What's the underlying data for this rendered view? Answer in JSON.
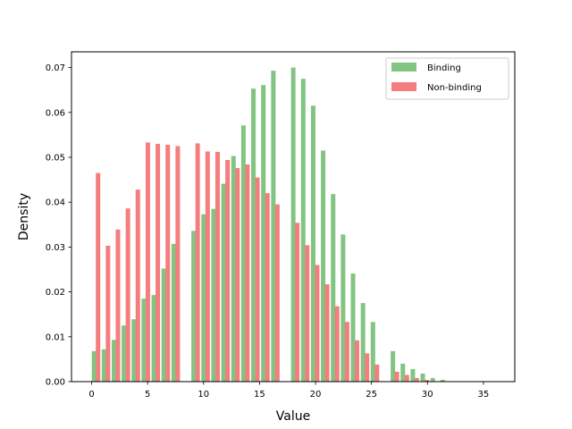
{
  "chart_data": {
    "type": "bar",
    "title": "",
    "xlabel": "Value",
    "ylabel": "Density",
    "xlim": [
      -1.8,
      37.8
    ],
    "ylim": [
      0,
      0.0735
    ],
    "xticks": [
      0,
      5,
      10,
      15,
      20,
      25,
      30,
      35
    ],
    "yticks": [
      0.0,
      0.01,
      0.02,
      0.03,
      0.04,
      0.05,
      0.06,
      0.07
    ],
    "ytick_labels": [
      "0.00",
      "0.01",
      "0.02",
      "0.03",
      "0.04",
      "0.05",
      "0.06",
      "0.07"
    ],
    "grid": false,
    "legend_position": "top-right",
    "bar_width": 0.4,
    "series": [
      {
        "name": "Binding",
        "color": "#82c482",
        "x": [
          0.21,
          1.1,
          1.99,
          2.88,
          3.77,
          4.66,
          5.55,
          6.44,
          7.33,
          9.11,
          10.0,
          10.89,
          11.78,
          12.67,
          13.56,
          14.45,
          15.34,
          16.23,
          18.01,
          18.9,
          19.79,
          20.68,
          21.57,
          22.46,
          23.35,
          24.24,
          25.13,
          26.91,
          27.8,
          28.69,
          29.58,
          30.47,
          31.36
        ],
        "values": [
          0.0068,
          0.0072,
          0.0093,
          0.0125,
          0.0139,
          0.0185,
          0.0193,
          0.0252,
          0.0307,
          0.0336,
          0.0373,
          0.0385,
          0.0441,
          0.0503,
          0.0571,
          0.0653,
          0.0661,
          0.0693,
          0.07,
          0.0675,
          0.0615,
          0.0515,
          0.0418,
          0.0328,
          0.0241,
          0.0175,
          0.0133,
          0.0068,
          0.004,
          0.0028,
          0.0018,
          0.0008,
          0.0004
        ]
      },
      {
        "name": "Non-binding",
        "color": "#f47e7e",
        "x": [
          0.57,
          1.46,
          2.35,
          3.24,
          4.13,
          5.02,
          5.91,
          6.8,
          7.69,
          9.47,
          10.36,
          11.25,
          12.14,
          13.03,
          13.92,
          14.81,
          15.7,
          16.59,
          18.37,
          19.26,
          20.15,
          21.04,
          21.93,
          22.82,
          23.71,
          24.6,
          25.49,
          27.27,
          28.16,
          29.05,
          29.94
        ],
        "values": [
          0.0465,
          0.0303,
          0.0339,
          0.0386,
          0.0428,
          0.0533,
          0.053,
          0.0528,
          0.0525,
          0.0531,
          0.0513,
          0.0512,
          0.0494,
          0.0476,
          0.0484,
          0.0455,
          0.042,
          0.0395,
          0.0354,
          0.0304,
          0.026,
          0.0217,
          0.0168,
          0.0133,
          0.0092,
          0.0063,
          0.0038,
          0.0022,
          0.0015,
          0.0008,
          0.0004
        ]
      }
    ]
  }
}
